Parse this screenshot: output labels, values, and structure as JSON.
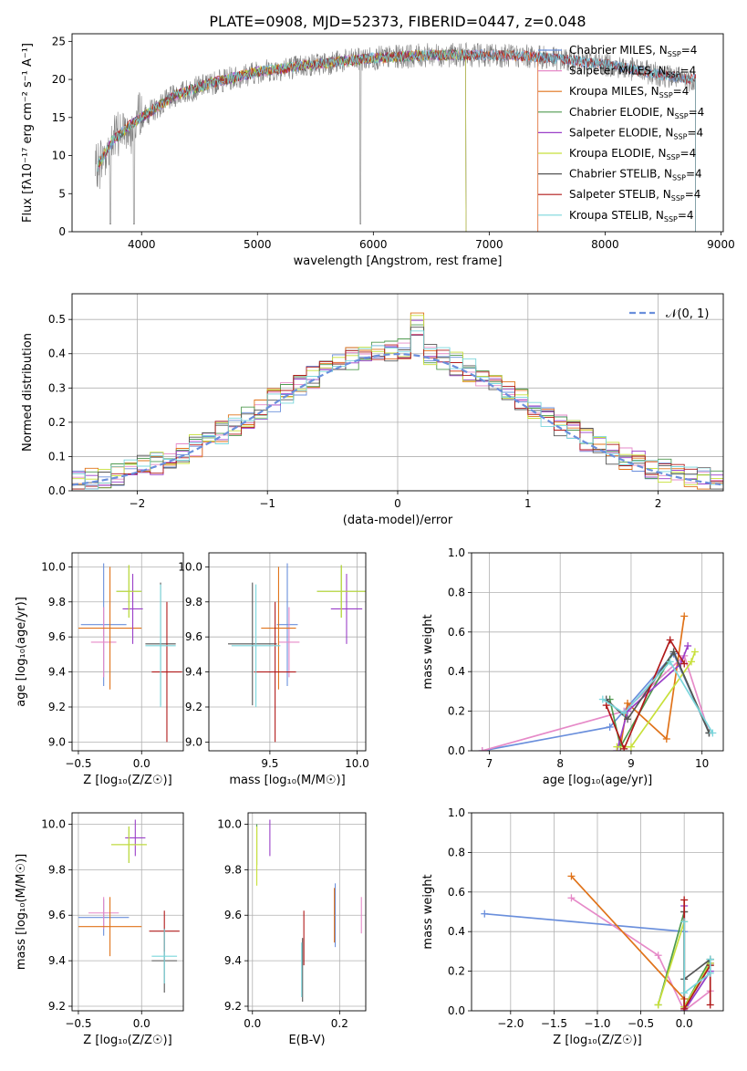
{
  "figure_title": "PLATE=0908, MJD=52373, FIBERID=0447, z=0.048",
  "colors": {
    "Chabrier MILES": "#6a8fdc",
    "Salpeter MILES": "#e68ac8",
    "Kroupa MILES": "#e0731a",
    "Chabrier ELODIE": "#4f9a4f",
    "Salpeter ELODIE": "#9a3fc8",
    "Kroupa ELODIE": "#c8e03a",
    "Chabrier STELIB": "#555555",
    "Salpeter STELIB": "#b01a1a",
    "Kroupa STELIB": "#7ad6dc"
  },
  "chart_data": [
    {
      "id": "spectrum",
      "type": "line",
      "xlabel": "wavelength [Angstrom, rest frame]",
      "ylabel": "Flux [fλ10⁻¹⁷ erg cm⁻² s⁻¹ A⁻¹]",
      "xlim": [
        3400,
        9020
      ],
      "ylim": [
        0,
        26
      ],
      "xticks": [
        4000,
        5000,
        6000,
        7000,
        8000,
        9000
      ],
      "yticks": [
        0,
        5,
        10,
        15,
        20,
        25
      ],
      "grid": false,
      "legend_position": "right",
      "data_series": {
        "name": "data",
        "color": "#808080",
        "x_range": [
          3600,
          8780
        ]
      },
      "continuum": {
        "x": [
          3600,
          3750,
          3900,
          4100,
          4300,
          4600,
          5000,
          5500,
          6000,
          6500,
          7000,
          7400,
          8000,
          8700
        ],
        "y": [
          8,
          12,
          14,
          16,
          18,
          19.5,
          21,
          22,
          22.8,
          23.2,
          23.2,
          23,
          22,
          20
        ]
      },
      "model_end_wavelengths": {
        "Chabrier MILES": 8780,
        "Salpeter MILES": 7420,
        "Kroupa MILES": 7420,
        "Chabrier ELODIE": 6800,
        "Salpeter ELODIE": 6800,
        "Kroupa ELODIE": 6800,
        "Chabrier STELIB": 8780,
        "Salpeter STELIB": 8780,
        "Kroupa STELIB": 8780
      },
      "legend": [
        {
          "name": "Chabrier MILES, N",
          "sub": "SSP",
          "suffix": "=4"
        },
        {
          "name": "Salpeter MILES, N",
          "sub": "SSP",
          "suffix": "=4"
        },
        {
          "name": "Kroupa MILES, N",
          "sub": "SSP",
          "suffix": "=4"
        },
        {
          "name": "Chabrier ELODIE, N",
          "sub": "SSP",
          "suffix": "=4"
        },
        {
          "name": "Salpeter ELODIE, N",
          "sub": "SSP",
          "suffix": "=4"
        },
        {
          "name": "Kroupa ELODIE, N",
          "sub": "SSP",
          "suffix": "=4"
        },
        {
          "name": "Chabrier STELIB, N",
          "sub": "SSP",
          "suffix": "=4"
        },
        {
          "name": "Salpeter STELIB, N",
          "sub": "SSP",
          "suffix": "=4"
        },
        {
          "name": "Kroupa STELIB, N",
          "sub": "SSP",
          "suffix": "=4"
        }
      ]
    },
    {
      "id": "residuals",
      "type": "histogram",
      "xlabel": "(data-model)/error",
      "ylabel": "Normed distribution",
      "xlim": [
        -2.5,
        2.5
      ],
      "ylim": [
        0,
        0.575
      ],
      "xticks": [
        -2,
        -1,
        0,
        1,
        2
      ],
      "yticks": [
        0.0,
        0.1,
        0.2,
        0.3,
        0.4,
        0.5
      ],
      "grid": true,
      "legend_position": "top-right",
      "legend": "𝒩(0, 1)",
      "gaussian": {
        "mean": 0,
        "sigma": 1,
        "color": "#6a8fdc"
      },
      "bin_width": 0.1
    },
    {
      "id": "z-age",
      "type": "errorbar",
      "xlabel": "Z [log₁₀(Z/Z☉)]",
      "ylabel": "age  [log₁₀(age/yr)]",
      "xlim": [
        -0.55,
        0.33
      ],
      "ylim": [
        8.95,
        10.08
      ],
      "xticks": [
        -0.5,
        0.0
      ],
      "yticks": [
        9.0,
        9.2,
        9.4,
        9.6,
        9.8,
        10.0
      ],
      "grid": true,
      "points": [
        {
          "model": "Chabrier MILES",
          "x": -0.3,
          "xerr": 0.18,
          "y": 9.67,
          "yerr": 0.35
        },
        {
          "model": "Salpeter MILES",
          "x": -0.3,
          "xerr": 0.1,
          "y": 9.57,
          "yerr": 0.2
        },
        {
          "model": "Kroupa MILES",
          "x": -0.25,
          "xerr": 0.25,
          "y": 9.65,
          "yerr": 0.35
        },
        {
          "model": "Chabrier ELODIE",
          "x": -0.1,
          "xerr": 0.1,
          "y": 9.86,
          "yerr": 0.15
        },
        {
          "model": "Salpeter ELODIE",
          "x": -0.07,
          "xerr": 0.08,
          "y": 9.76,
          "yerr": 0.2
        },
        {
          "model": "Kroupa ELODIE",
          "x": -0.1,
          "xerr": 0.1,
          "y": 9.86,
          "yerr": 0.15
        },
        {
          "model": "Chabrier STELIB",
          "x": 0.15,
          "xerr": 0.12,
          "y": 9.56,
          "yerr": 0.35
        },
        {
          "model": "Salpeter STELIB",
          "x": 0.2,
          "xerr": 0.12,
          "y": 9.4,
          "yerr": 0.4
        },
        {
          "model": "Kroupa STELIB",
          "x": 0.15,
          "xerr": 0.12,
          "y": 9.55,
          "yerr": 0.35
        }
      ]
    },
    {
      "id": "mass-age",
      "type": "errorbar",
      "xlabel": "mass [log₁₀(M/M☉)]",
      "ylabel": "",
      "xlim": [
        9.15,
        10.05
      ],
      "ylim": [
        8.95,
        10.08
      ],
      "xticks": [
        9.5,
        10.0
      ],
      "yticks": [
        9.0,
        9.2,
        9.4,
        9.6,
        9.8,
        10.0
      ],
      "grid": true,
      "points": [
        {
          "model": "Chabrier MILES",
          "x": 9.6,
          "xerr": 0.06,
          "y": 9.67,
          "yerr": 0.35
        },
        {
          "model": "Salpeter MILES",
          "x": 9.61,
          "xerr": 0.06,
          "y": 9.57,
          "yerr": 0.2
        },
        {
          "model": "Kroupa MILES",
          "x": 9.55,
          "xerr": 0.1,
          "y": 9.65,
          "yerr": 0.35
        },
        {
          "model": "Chabrier ELODIE",
          "x": 9.91,
          "xerr": 0.14,
          "y": 9.86,
          "yerr": 0.15
        },
        {
          "model": "Salpeter ELODIE",
          "x": 9.94,
          "xerr": 0.09,
          "y": 9.76,
          "yerr": 0.2
        },
        {
          "model": "Kroupa ELODIE",
          "x": 9.91,
          "xerr": 0.14,
          "y": 9.86,
          "yerr": 0.15
        },
        {
          "model": "Chabrier STELIB",
          "x": 9.4,
          "xerr": 0.14,
          "y": 9.56,
          "yerr": 0.35
        },
        {
          "model": "Salpeter STELIB",
          "x": 9.53,
          "xerr": 0.12,
          "y": 9.4,
          "yerr": 0.4
        },
        {
          "model": "Kroupa STELIB",
          "x": 9.42,
          "xerr": 0.14,
          "y": 9.55,
          "yerr": 0.35
        }
      ]
    },
    {
      "id": "age-weight",
      "type": "line",
      "xlabel": "age  [log₁₀(age/yr)]",
      "ylabel": "mass weight",
      "xlim": [
        6.75,
        10.3
      ],
      "ylim": [
        0,
        1
      ],
      "xticks": [
        7,
        8,
        9,
        10
      ],
      "yticks": [
        0.0,
        0.2,
        0.4,
        0.6,
        0.8,
        1.0
      ],
      "grid": true,
      "series": [
        {
          "name": "Chabrier MILES",
          "x": [
            6.9,
            8.7,
            9.6,
            10.1
          ],
          "y": [
            0.0,
            0.12,
            0.49,
            0.09
          ]
        },
        {
          "name": "Salpeter MILES",
          "x": [
            6.9,
            8.9,
            9.75,
            10.1
          ],
          "y": [
            0.0,
            0.2,
            0.48,
            0.09
          ]
        },
        {
          "name": "Kroupa MILES",
          "x": [
            8.85,
            8.95,
            9.5,
            9.75
          ],
          "y": [
            0.02,
            0.24,
            0.06,
            0.68
          ]
        },
        {
          "name": "Chabrier ELODIE",
          "x": [
            8.7,
            8.85,
            9.6,
            10.1
          ],
          "y": [
            0.26,
            0.02,
            0.5,
            0.09
          ]
        },
        {
          "name": "Salpeter ELODIE",
          "x": [
            8.8,
            8.95,
            9.7,
            9.8
          ],
          "y": [
            0.0,
            0.2,
            0.44,
            0.53
          ]
        },
        {
          "name": "Kroupa ELODIE",
          "x": [
            8.8,
            9.0,
            9.85,
            9.9
          ],
          "y": [
            0.02,
            0.02,
            0.45,
            0.5
          ]
        },
        {
          "name": "Chabrier STELIB",
          "x": [
            8.65,
            8.95,
            9.6,
            10.1
          ],
          "y": [
            0.26,
            0.16,
            0.5,
            0.09
          ]
        },
        {
          "name": "Salpeter STELIB",
          "x": [
            8.65,
            8.9,
            9.55,
            9.75
          ],
          "y": [
            0.23,
            0.01,
            0.56,
            0.44
          ]
        },
        {
          "name": "Kroupa STELIB",
          "x": [
            8.6,
            8.9,
            9.55,
            10.15
          ],
          "y": [
            0.26,
            0.19,
            0.45,
            0.09
          ]
        }
      ]
    },
    {
      "id": "z-mass",
      "type": "errorbar",
      "xlabel": "Z [log₁₀(Z/Z☉)]",
      "ylabel": "mass [log₁₀(M/M☉)]",
      "xlim": [
        -0.55,
        0.33
      ],
      "ylim": [
        9.18,
        10.05
      ],
      "xticks": [
        -0.5,
        0.0
      ],
      "yticks": [
        9.2,
        9.4,
        9.6,
        9.8,
        10.0
      ],
      "grid": true,
      "points": [
        {
          "model": "Chabrier MILES",
          "x": -0.3,
          "xerr": 0.2,
          "y": 9.59,
          "yerr": 0.08
        },
        {
          "model": "Salpeter MILES",
          "x": -0.3,
          "xerr": 0.12,
          "y": 9.61,
          "yerr": 0.07
        },
        {
          "model": "Kroupa MILES",
          "x": -0.25,
          "xerr": 0.25,
          "y": 9.55,
          "yerr": 0.13
        },
        {
          "model": "Chabrier ELODIE",
          "x": -0.1,
          "xerr": 0.14,
          "y": 9.91,
          "yerr": 0.08
        },
        {
          "model": "Salpeter ELODIE",
          "x": -0.05,
          "xerr": 0.08,
          "y": 9.94,
          "yerr": 0.08
        },
        {
          "model": "Kroupa ELODIE",
          "x": -0.1,
          "xerr": 0.14,
          "y": 9.91,
          "yerr": 0.08
        },
        {
          "model": "Chabrier STELIB",
          "x": 0.18,
          "xerr": 0.1,
          "y": 9.4,
          "yerr": 0.14
        },
        {
          "model": "Salpeter STELIB",
          "x": 0.18,
          "xerr": 0.12,
          "y": 9.53,
          "yerr": 0.09
        },
        {
          "model": "Kroupa STELIB",
          "x": 0.18,
          "xerr": 0.1,
          "y": 9.42,
          "yerr": 0.12
        }
      ]
    },
    {
      "id": "ebv-mass",
      "type": "errorbar",
      "xlabel": "E(B-V)",
      "ylabel": "",
      "xlim": [
        -0.01,
        0.26
      ],
      "ylim": [
        9.18,
        10.05
      ],
      "xticks": [
        0.0,
        0.2
      ],
      "yticks": [
        9.2,
        9.4,
        9.6,
        9.8,
        10.0
      ],
      "grid": true,
      "points": [
        {
          "model": "Chabrier MILES",
          "x": 0.19,
          "xerr": 0,
          "y": 9.6,
          "yerr": 0.14
        },
        {
          "model": "Salpeter MILES",
          "x": 0.25,
          "xerr": 0,
          "y": 9.6,
          "yerr": 0.08
        },
        {
          "model": "Kroupa MILES",
          "x": 0.188,
          "xerr": 0,
          "y": 9.6,
          "yerr": 0.12
        },
        {
          "model": "Chabrier ELODIE",
          "x": 0.01,
          "xerr": 0,
          "y": 9.91,
          "yerr": 0.09
        },
        {
          "model": "Salpeter ELODIE",
          "x": 0.04,
          "xerr": 0,
          "y": 9.94,
          "yerr": 0.08
        },
        {
          "model": "Kroupa ELODIE",
          "x": 0.01,
          "xerr": 0,
          "y": 9.86,
          "yerr": 0.13
        },
        {
          "model": "Chabrier STELIB",
          "x": 0.115,
          "xerr": 0,
          "y": 9.36,
          "yerr": 0.14
        },
        {
          "model": "Salpeter STELIB",
          "x": 0.118,
          "xerr": 0,
          "y": 9.5,
          "yerr": 0.12
        },
        {
          "model": "Kroupa STELIB",
          "x": 0.113,
          "xerr": 0,
          "y": 9.36,
          "yerr": 0.12
        }
      ]
    },
    {
      "id": "z-weight",
      "type": "line",
      "xlabel": "Z [log₁₀(Z/Z☉)]",
      "ylabel": "mass weight",
      "xlim": [
        -2.45,
        0.45
      ],
      "ylim": [
        0,
        1
      ],
      "xticks": [
        -2.0,
        -1.5,
        -1.0,
        -0.5,
        0.0
      ],
      "yticks": [
        0.0,
        0.2,
        0.4,
        0.6,
        0.8,
        1.0
      ],
      "grid": true,
      "series": [
        {
          "name": "Chabrier MILES",
          "x": [
            -2.3,
            0.0,
            0.0,
            0.3
          ],
          "y": [
            0.49,
            0.4,
            0.0,
            0.2
          ]
        },
        {
          "name": "Salpeter MILES",
          "x": [
            -1.3,
            -0.3,
            0.0,
            0.3
          ],
          "y": [
            0.57,
            0.28,
            0.0,
            0.1
          ]
        },
        {
          "name": "Kroupa MILES",
          "x": [
            -1.3,
            0.0,
            0.0,
            0.3
          ],
          "y": [
            0.68,
            0.06,
            0.02,
            0.24
          ]
        },
        {
          "name": "Chabrier ELODIE",
          "x": [
            -0.3,
            0.0,
            0.0,
            0.3
          ],
          "y": [
            0.03,
            0.5,
            0.02,
            0.26
          ]
        },
        {
          "name": "Salpeter ELODIE",
          "x": [
            0.0,
            0.0,
            0.3,
            0.3
          ],
          "y": [
            0.53,
            0.0,
            0.2,
            0.24
          ]
        },
        {
          "name": "Kroupa ELODIE",
          "x": [
            -0.3,
            0.0,
            0.0,
            0.3
          ],
          "y": [
            0.03,
            0.45,
            0.02,
            0.24
          ]
        },
        {
          "name": "Chabrier STELIB",
          "x": [
            0.0,
            0.0,
            0.3,
            0.3
          ],
          "y": [
            0.5,
            0.16,
            0.26,
            0.23
          ]
        },
        {
          "name": "Salpeter STELIB",
          "x": [
            0.0,
            0.0,
            0.3,
            0.3
          ],
          "y": [
            0.56,
            0.01,
            0.23,
            0.03
          ]
        },
        {
          "name": "Kroupa STELIB",
          "x": [
            0.0,
            0.0,
            0.3,
            0.3
          ],
          "y": [
            0.45,
            0.09,
            0.19,
            0.26
          ]
        }
      ]
    }
  ]
}
